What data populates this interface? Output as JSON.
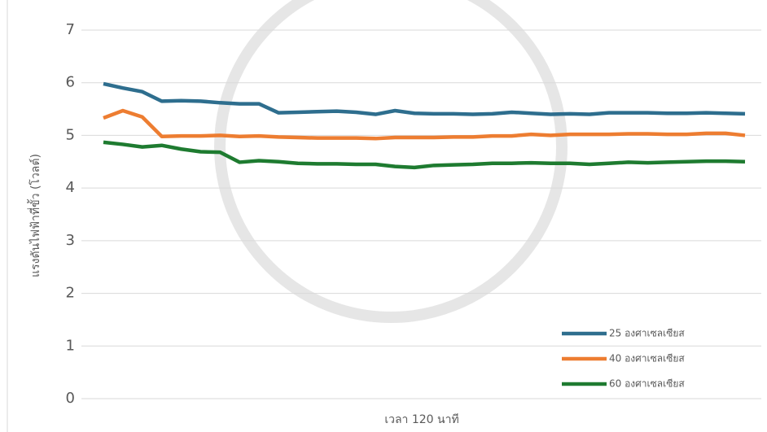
{
  "chart_data": {
    "type": "line",
    "ylabel": "แรงดันไฟฟ้าที่ขั้ว (โวลต์)",
    "xlabel": "เวลา 120 นาที",
    "categories": [
      null,
      null,
      null,
      null,
      null,
      null,
      null,
      null,
      null,
      null,
      null,
      null,
      null,
      null,
      null,
      null,
      null,
      null,
      null,
      null,
      null,
      null,
      null,
      null,
      null,
      null,
      null,
      null,
      null,
      null,
      null,
      null,
      null,
      null
    ],
    "series": [
      {
        "name": "25 องศาเซลเซียส",
        "color": "#2e6e8e",
        "values": [
          5.98,
          5.9,
          5.83,
          5.65,
          5.66,
          5.65,
          5.62,
          5.6,
          5.6,
          5.43,
          5.44,
          5.45,
          5.46,
          5.44,
          5.4,
          5.47,
          5.42,
          5.41,
          5.41,
          5.4,
          5.41,
          5.44,
          5.42,
          5.4,
          5.41,
          5.4,
          5.43,
          5.43,
          5.43,
          5.42,
          5.42,
          5.43,
          5.42,
          5.41
        ]
      },
      {
        "name": "40 องศาเซลเซียส",
        "color": "#ed7d31",
        "values": [
          5.33,
          5.47,
          5.35,
          4.98,
          4.99,
          4.99,
          5.0,
          4.98,
          4.99,
          4.97,
          4.96,
          4.95,
          4.95,
          4.95,
          4.94,
          4.96,
          4.96,
          4.96,
          4.97,
          4.97,
          4.99,
          4.99,
          5.02,
          5.0,
          5.02,
          5.02,
          5.02,
          5.03,
          5.03,
          5.02,
          5.02,
          5.04,
          5.04,
          5.0
        ]
      },
      {
        "name": "60 องศาเซลเซียส",
        "color": "#1e7b30",
        "values": [
          4.87,
          4.83,
          4.78,
          4.81,
          4.74,
          4.69,
          4.68,
          4.49,
          4.52,
          4.5,
          4.47,
          4.46,
          4.46,
          4.45,
          4.45,
          4.41,
          4.39,
          4.43,
          4.44,
          4.45,
          4.47,
          4.47,
          4.48,
          4.47,
          4.47,
          4.45,
          4.47,
          4.49,
          4.48,
          4.49,
          4.5,
          4.51,
          4.51,
          4.5
        ]
      }
    ],
    "ylim": [
      0,
      7
    ],
    "yticks": [
      0,
      1,
      2,
      3,
      4,
      5,
      6,
      7
    ],
    "grid": true,
    "legend": "lower right"
  }
}
